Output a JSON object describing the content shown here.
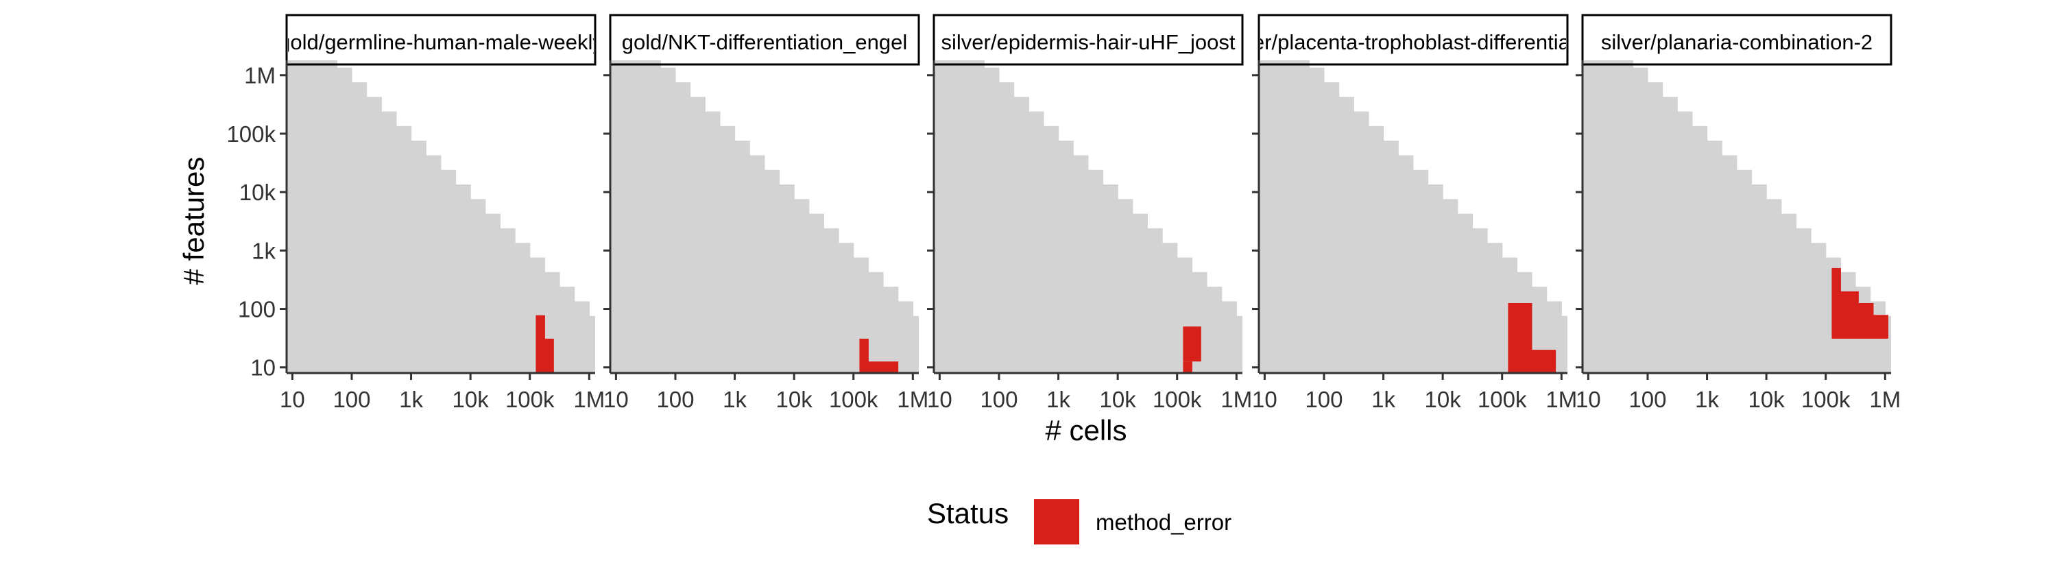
{
  "chart_data": {
    "type": "heatmap",
    "xlabel": "# cells",
    "ylabel": "# features",
    "x_scale": "log10",
    "y_scale": "log10",
    "x_ticks": [
      {
        "value": 10,
        "label": "10"
      },
      {
        "value": 100,
        "label": "100"
      },
      {
        "value": 1000,
        "label": "1k"
      },
      {
        "value": 10000,
        "label": "10k"
      },
      {
        "value": 100000,
        "label": "100k"
      },
      {
        "value": 1000000,
        "label": "1M"
      }
    ],
    "y_ticks": [
      {
        "value": 10,
        "label": "10"
      },
      {
        "value": 100,
        "label": "100"
      },
      {
        "value": 1000,
        "label": "1k"
      },
      {
        "value": 10000,
        "label": "10k"
      },
      {
        "value": 100000,
        "label": "100k"
      },
      {
        "value": 1000000,
        "label": "1M"
      }
    ],
    "colors": {
      "background_tile": "#d3d3d3",
      "method_error": "#d7201a"
    },
    "legend": {
      "title": "Status",
      "position": "bottom",
      "entries": [
        {
          "label": "method_error",
          "color": "#d7201a"
        }
      ]
    },
    "panels": [
      {
        "label": "gold/germline-human-male-weekly",
        "method_error": [
          {
            "x": [
              126000,
              178000
            ],
            "y": [
              8,
              78
            ]
          },
          {
            "x": [
              178000,
              251000
            ],
            "y": [
              8,
              31
            ]
          }
        ]
      },
      {
        "label": "gold/NKT-differentiation_engel",
        "method_error": [
          {
            "x": [
              126000,
              178000
            ],
            "y": [
              8,
              31
            ]
          },
          {
            "x": [
              178000,
              562000
            ],
            "y": [
              8,
              12.6
            ]
          }
        ]
      },
      {
        "label": "silver/epidermis-hair-uHF_joost",
        "method_error": [
          {
            "x": [
              126000,
              178000
            ],
            "y": [
              12.6,
              50
            ]
          },
          {
            "x": [
              178000,
              251000
            ],
            "y": [
              12.6,
              50
            ]
          },
          {
            "x": [
              126000,
              178000
            ],
            "y": [
              8,
              12.6
            ]
          }
        ]
      },
      {
        "label": "silver/placenta-trophoblast-differentiation",
        "method_error": [
          {
            "x": [
              126000,
              316000
            ],
            "y": [
              8,
              126
            ]
          },
          {
            "x": [
              316000,
              794000
            ],
            "y": [
              8,
              20
            ]
          }
        ]
      },
      {
        "label": "silver/planaria-combination-2",
        "method_error": [
          {
            "x": [
              126000,
              178000
            ],
            "y": [
              31,
              501
            ]
          },
          {
            "x": [
              178000,
              355000
            ],
            "y": [
              31,
              200
            ]
          },
          {
            "x": [
              355000,
              631000
            ],
            "y": [
              31,
              126
            ]
          },
          {
            "x": [
              631000,
              1120000
            ],
            "y": [
              31,
              79
            ]
          }
        ]
      }
    ]
  }
}
